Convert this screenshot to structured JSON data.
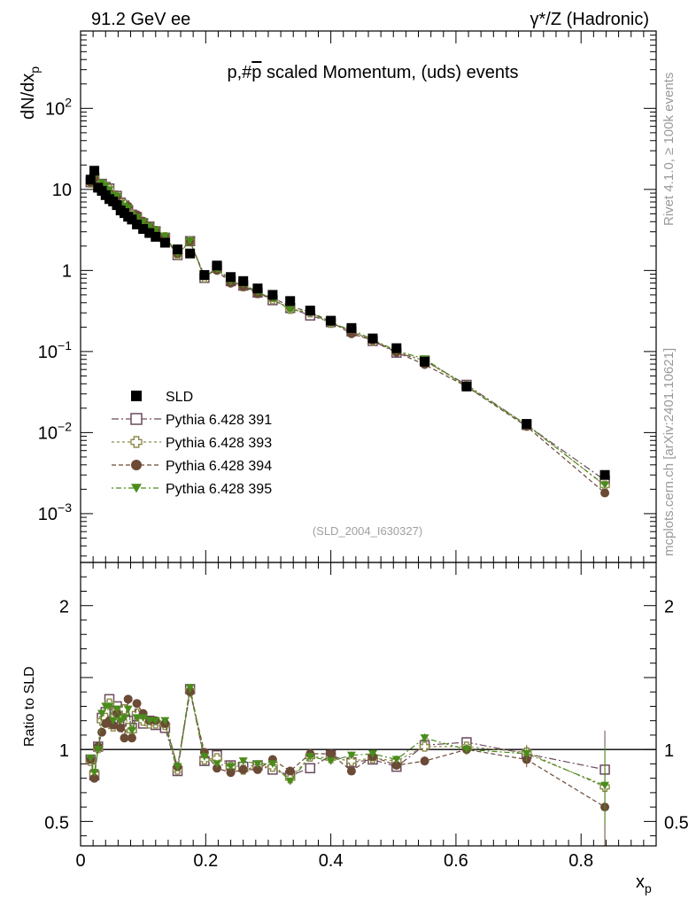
{
  "header": {
    "left": "91.2 GeV ee",
    "right": "γ*/Z (Hadronic)"
  },
  "side_labels": {
    "rivet": "Rivet 4.1.0, ≥ 100k events",
    "mcplots": "mcplots.cern.ch [arXiv:2401.10621]"
  },
  "chart_data": {
    "type": "scatter",
    "title": "p,#p̄ scaled Momentum, (uds) events",
    "title_parts": {
      "pre": "p,#",
      "bar": "p",
      "post": " scaled Momentum, (uds) events"
    },
    "analysis_id": "(SLD_2004_I630327)",
    "xlabel": "x",
    "xlabel_sub": "p",
    "ylabel": "dN/dx",
    "ylabel_sub": "p",
    "ratio_ylabel": "Ratio to SLD",
    "xlim": [
      0,
      0.92
    ],
    "ylim": [
      0.00025,
      900
    ],
    "yscale": "log",
    "ratio_ylim": [
      0.33,
      2.3
    ],
    "x_ticks": [
      {
        "value": 0,
        "label": "0"
      },
      {
        "value": 0.2,
        "label": "0.2"
      },
      {
        "value": 0.4,
        "label": "0.4"
      },
      {
        "value": 0.6,
        "label": "0.6"
      },
      {
        "value": 0.8,
        "label": "0.8"
      }
    ],
    "y_ticks": [
      {
        "value": 100,
        "base": "10",
        "exp": "2"
      },
      {
        "value": 10,
        "base": "10",
        "exp": ""
      },
      {
        "value": 1,
        "base": "1",
        "exp": ""
      },
      {
        "value": 0.1,
        "base": "10",
        "exp": "−1"
      },
      {
        "value": 0.01,
        "base": "10",
        "exp": "−2"
      },
      {
        "value": 0.001,
        "base": "10",
        "exp": "−3"
      }
    ],
    "ratio_ticks": [
      {
        "value": 2,
        "label": "2"
      },
      {
        "value": 1,
        "label": "1"
      },
      {
        "value": 0.5,
        "label": "0.5"
      }
    ],
    "x": [
      0.016,
      0.022,
      0.028,
      0.034,
      0.04,
      0.046,
      0.052,
      0.058,
      0.064,
      0.07,
      0.076,
      0.082,
      0.09,
      0.1,
      0.11,
      0.12,
      0.135,
      0.155,
      0.175,
      0.198,
      0.218,
      0.24,
      0.26,
      0.283,
      0.307,
      0.335,
      0.367,
      0.4,
      0.433,
      0.467,
      0.505,
      0.55,
      0.617,
      0.713,
      0.838
    ],
    "data": {
      "name": "SLD",
      "color": "#000000",
      "values": [
        13.2,
        17.0,
        10.5,
        9.6,
        8.5,
        7.6,
        7.1,
        6.4,
        5.5,
        5.1,
        4.6,
        4.25,
        3.7,
        3.25,
        2.9,
        2.6,
        2.2,
        1.82,
        1.62,
        0.88,
        1.15,
        0.83,
        0.74,
        0.6,
        0.5,
        0.42,
        0.32,
        0.24,
        0.195,
        0.145,
        0.11,
        0.075,
        0.037,
        0.0128,
        0.003
      ]
    },
    "series": [
      {
        "name": "Pythia 6.428 391",
        "color": "#6b4a5e",
        "marker": "open-square",
        "dash": "8,3,2,3",
        "ratio": [
          0.93,
          0.82,
          1.02,
          1.22,
          1.26,
          1.35,
          1.18,
          1.3,
          1.25,
          1.24,
          1.2,
          1.15,
          1.23,
          1.18,
          1.2,
          1.17,
          1.15,
          0.85,
          1.42,
          0.92,
          0.96,
          0.89,
          0.88,
          0.89,
          0.86,
          0.82,
          0.87,
          0.96,
          0.91,
          0.93,
          0.88,
          1.03,
          1.05,
          0.97,
          0.86
        ]
      },
      {
        "name": "Pythia 6.428 393",
        "color": "#8b8b4a",
        "marker": "open-cross",
        "dash": "3,3",
        "ratio": [
          0.92,
          0.83,
          1.01,
          1.2,
          1.22,
          1.32,
          1.16,
          1.27,
          1.22,
          1.28,
          1.15,
          1.13,
          1.25,
          1.2,
          1.18,
          1.18,
          1.17,
          0.86,
          1.41,
          0.93,
          0.94,
          0.88,
          0.86,
          0.88,
          0.88,
          0.8,
          0.95,
          0.94,
          0.92,
          0.94,
          0.92,
          1.02,
          1.02,
          0.98,
          0.74
        ]
      },
      {
        "name": "Pythia 6.428 394",
        "color": "#6b4a36",
        "marker": "filled-circle",
        "dash": "5,3",
        "ratio": [
          0.93,
          0.8,
          1.02,
          1.12,
          1.18,
          1.2,
          1.17,
          1.25,
          1.15,
          1.08,
          1.35,
          1.08,
          1.32,
          1.25,
          1.2,
          1.2,
          1.18,
          0.88,
          1.4,
          0.98,
          0.87,
          0.84,
          0.86,
          0.86,
          0.93,
          0.85,
          0.97,
          0.97,
          0.85,
          0.95,
          0.89,
          0.92,
          1.0,
          0.93,
          0.6
        ]
      },
      {
        "name": "Pythia 6.428 395",
        "color": "#4a8c1c",
        "marker": "filled-triangle-down",
        "dash": "2,3,6,3",
        "ratio": [
          0.94,
          0.84,
          1.0,
          1.25,
          1.3,
          1.3,
          1.2,
          1.28,
          1.2,
          1.22,
          1.28,
          1.13,
          1.22,
          1.22,
          1.2,
          1.2,
          1.2,
          0.88,
          1.43,
          0.95,
          0.9,
          0.88,
          0.92,
          0.9,
          0.9,
          0.78,
          0.95,
          0.92,
          0.96,
          0.97,
          0.93,
          1.08,
          1.0,
          0.97,
          0.75
        ]
      }
    ]
  }
}
